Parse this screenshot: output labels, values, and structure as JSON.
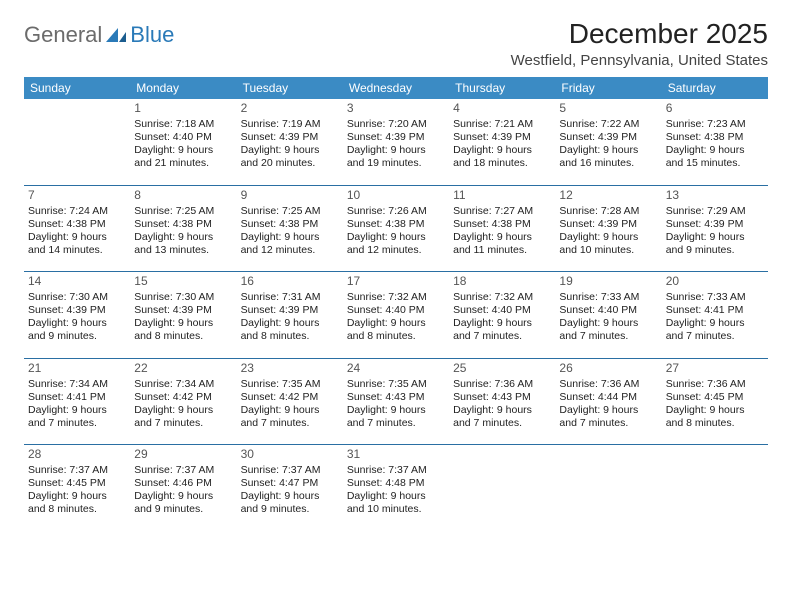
{
  "logo": {
    "word1": "General",
    "word2": "Blue"
  },
  "title": "December 2025",
  "location": "Westfield, Pennsylvania, United States",
  "colors": {
    "header_bg": "#3b8bc4",
    "header_text": "#ffffff",
    "rule": "#2a6fa3",
    "logo_gray": "#6b6b6b",
    "logo_blue": "#2a7ab8",
    "text": "#222222",
    "daynum": "#555555",
    "page_bg": "#ffffff"
  },
  "typography": {
    "title_fontsize": 28,
    "location_fontsize": 15,
    "header_fontsize": 12,
    "cell_fontsize": 10.5,
    "daynum_fontsize": 12,
    "logo_fontsize": 22
  },
  "day_headers": [
    "Sunday",
    "Monday",
    "Tuesday",
    "Wednesday",
    "Thursday",
    "Friday",
    "Saturday"
  ],
  "weeks": [
    [
      null,
      {
        "n": "1",
        "sr": "Sunrise: 7:18 AM",
        "ss": "Sunset: 4:40 PM",
        "d1": "Daylight: 9 hours",
        "d2": "and 21 minutes."
      },
      {
        "n": "2",
        "sr": "Sunrise: 7:19 AM",
        "ss": "Sunset: 4:39 PM",
        "d1": "Daylight: 9 hours",
        "d2": "and 20 minutes."
      },
      {
        "n": "3",
        "sr": "Sunrise: 7:20 AM",
        "ss": "Sunset: 4:39 PM",
        "d1": "Daylight: 9 hours",
        "d2": "and 19 minutes."
      },
      {
        "n": "4",
        "sr": "Sunrise: 7:21 AM",
        "ss": "Sunset: 4:39 PM",
        "d1": "Daylight: 9 hours",
        "d2": "and 18 minutes."
      },
      {
        "n": "5",
        "sr": "Sunrise: 7:22 AM",
        "ss": "Sunset: 4:39 PM",
        "d1": "Daylight: 9 hours",
        "d2": "and 16 minutes."
      },
      {
        "n": "6",
        "sr": "Sunrise: 7:23 AM",
        "ss": "Sunset: 4:38 PM",
        "d1": "Daylight: 9 hours",
        "d2": "and 15 minutes."
      }
    ],
    [
      {
        "n": "7",
        "sr": "Sunrise: 7:24 AM",
        "ss": "Sunset: 4:38 PM",
        "d1": "Daylight: 9 hours",
        "d2": "and 14 minutes."
      },
      {
        "n": "8",
        "sr": "Sunrise: 7:25 AM",
        "ss": "Sunset: 4:38 PM",
        "d1": "Daylight: 9 hours",
        "d2": "and 13 minutes."
      },
      {
        "n": "9",
        "sr": "Sunrise: 7:25 AM",
        "ss": "Sunset: 4:38 PM",
        "d1": "Daylight: 9 hours",
        "d2": "and 12 minutes."
      },
      {
        "n": "10",
        "sr": "Sunrise: 7:26 AM",
        "ss": "Sunset: 4:38 PM",
        "d1": "Daylight: 9 hours",
        "d2": "and 12 minutes."
      },
      {
        "n": "11",
        "sr": "Sunrise: 7:27 AM",
        "ss": "Sunset: 4:38 PM",
        "d1": "Daylight: 9 hours",
        "d2": "and 11 minutes."
      },
      {
        "n": "12",
        "sr": "Sunrise: 7:28 AM",
        "ss": "Sunset: 4:39 PM",
        "d1": "Daylight: 9 hours",
        "d2": "and 10 minutes."
      },
      {
        "n": "13",
        "sr": "Sunrise: 7:29 AM",
        "ss": "Sunset: 4:39 PM",
        "d1": "Daylight: 9 hours",
        "d2": "and 9 minutes."
      }
    ],
    [
      {
        "n": "14",
        "sr": "Sunrise: 7:30 AM",
        "ss": "Sunset: 4:39 PM",
        "d1": "Daylight: 9 hours",
        "d2": "and 9 minutes."
      },
      {
        "n": "15",
        "sr": "Sunrise: 7:30 AM",
        "ss": "Sunset: 4:39 PM",
        "d1": "Daylight: 9 hours",
        "d2": "and 8 minutes."
      },
      {
        "n": "16",
        "sr": "Sunrise: 7:31 AM",
        "ss": "Sunset: 4:39 PM",
        "d1": "Daylight: 9 hours",
        "d2": "and 8 minutes."
      },
      {
        "n": "17",
        "sr": "Sunrise: 7:32 AM",
        "ss": "Sunset: 4:40 PM",
        "d1": "Daylight: 9 hours",
        "d2": "and 8 minutes."
      },
      {
        "n": "18",
        "sr": "Sunrise: 7:32 AM",
        "ss": "Sunset: 4:40 PM",
        "d1": "Daylight: 9 hours",
        "d2": "and 7 minutes."
      },
      {
        "n": "19",
        "sr": "Sunrise: 7:33 AM",
        "ss": "Sunset: 4:40 PM",
        "d1": "Daylight: 9 hours",
        "d2": "and 7 minutes."
      },
      {
        "n": "20",
        "sr": "Sunrise: 7:33 AM",
        "ss": "Sunset: 4:41 PM",
        "d1": "Daylight: 9 hours",
        "d2": "and 7 minutes."
      }
    ],
    [
      {
        "n": "21",
        "sr": "Sunrise: 7:34 AM",
        "ss": "Sunset: 4:41 PM",
        "d1": "Daylight: 9 hours",
        "d2": "and 7 minutes."
      },
      {
        "n": "22",
        "sr": "Sunrise: 7:34 AM",
        "ss": "Sunset: 4:42 PM",
        "d1": "Daylight: 9 hours",
        "d2": "and 7 minutes."
      },
      {
        "n": "23",
        "sr": "Sunrise: 7:35 AM",
        "ss": "Sunset: 4:42 PM",
        "d1": "Daylight: 9 hours",
        "d2": "and 7 minutes."
      },
      {
        "n": "24",
        "sr": "Sunrise: 7:35 AM",
        "ss": "Sunset: 4:43 PM",
        "d1": "Daylight: 9 hours",
        "d2": "and 7 minutes."
      },
      {
        "n": "25",
        "sr": "Sunrise: 7:36 AM",
        "ss": "Sunset: 4:43 PM",
        "d1": "Daylight: 9 hours",
        "d2": "and 7 minutes."
      },
      {
        "n": "26",
        "sr": "Sunrise: 7:36 AM",
        "ss": "Sunset: 4:44 PM",
        "d1": "Daylight: 9 hours",
        "d2": "and 7 minutes."
      },
      {
        "n": "27",
        "sr": "Sunrise: 7:36 AM",
        "ss": "Sunset: 4:45 PM",
        "d1": "Daylight: 9 hours",
        "d2": "and 8 minutes."
      }
    ],
    [
      {
        "n": "28",
        "sr": "Sunrise: 7:37 AM",
        "ss": "Sunset: 4:45 PM",
        "d1": "Daylight: 9 hours",
        "d2": "and 8 minutes."
      },
      {
        "n": "29",
        "sr": "Sunrise: 7:37 AM",
        "ss": "Sunset: 4:46 PM",
        "d1": "Daylight: 9 hours",
        "d2": "and 9 minutes."
      },
      {
        "n": "30",
        "sr": "Sunrise: 7:37 AM",
        "ss": "Sunset: 4:47 PM",
        "d1": "Daylight: 9 hours",
        "d2": "and 9 minutes."
      },
      {
        "n": "31",
        "sr": "Sunrise: 7:37 AM",
        "ss": "Sunset: 4:48 PM",
        "d1": "Daylight: 9 hours",
        "d2": "and 10 minutes."
      },
      null,
      null,
      null
    ]
  ]
}
